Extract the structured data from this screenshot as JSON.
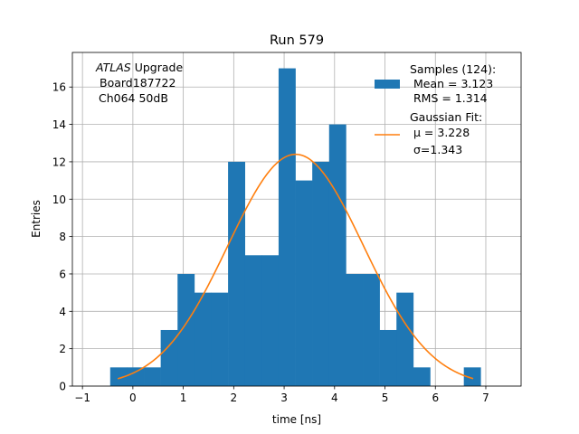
{
  "chart_data": {
    "type": "bar",
    "title": "Run 579",
    "xlabel": "time [ns]",
    "ylabel": "Entries",
    "xlim": [
      -1.2,
      7.7
    ],
    "ylim": [
      0,
      17.85
    ],
    "xticks": [
      -1,
      0,
      1,
      2,
      3,
      4,
      5,
      6,
      7
    ],
    "yticks": [
      0,
      2,
      4,
      6,
      8,
      10,
      12,
      14,
      16
    ],
    "grid": true,
    "annotation": {
      "italic": "ATLAS",
      "line1_rest": " Upgrade",
      "line2": "Board187722",
      "line3": "Ch064 50dB"
    },
    "histogram": {
      "name": "Samples (124):",
      "stats": [
        "Mean = 3.123",
        "RMS = 1.314"
      ],
      "color": "#1f77b4",
      "bin_edges": [
        -0.45,
        -0.116,
        0.218,
        0.552,
        0.886,
        1.22,
        1.554,
        1.888,
        2.222,
        2.556,
        2.89,
        3.224,
        3.558,
        3.892,
        4.226,
        4.56,
        4.894,
        5.228,
        5.562,
        5.896,
        6.23,
        6.564,
        6.898
      ],
      "counts": [
        1,
        1,
        1,
        3,
        6,
        5,
        5,
        12,
        7,
        7,
        17,
        11,
        12,
        14,
        6,
        6,
        3,
        5,
        1,
        0,
        0,
        1
      ]
    },
    "fit": {
      "name": "Gaussian Fit:",
      "mu_label": "μ = 3.228",
      "sigma_label": "σ=1.343",
      "color": "#ff7f0e",
      "mu": 3.228,
      "sigma": 1.343,
      "amplitude": 12.4,
      "x_range": [
        -0.3,
        6.75
      ]
    },
    "legend_position": "top-right"
  }
}
